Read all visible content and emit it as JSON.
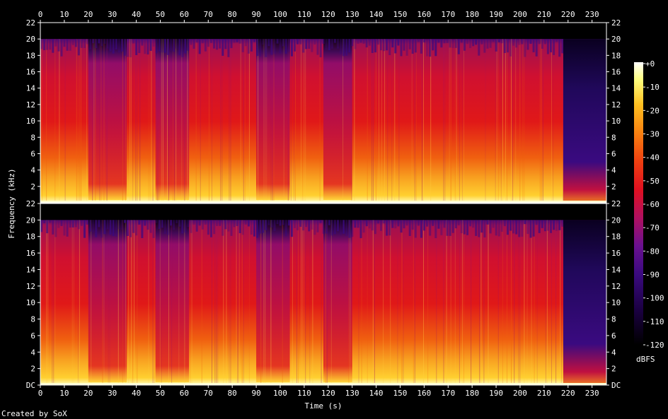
{
  "chart_data": {
    "type": "heatmap",
    "title": "",
    "xlabel": "Time (s)",
    "ylabel": "Frequency (kHz)",
    "x_ticks": [
      0,
      10,
      20,
      30,
      40,
      50,
      60,
      70,
      80,
      90,
      100,
      110,
      120,
      130,
      140,
      150,
      160,
      170,
      180,
      190,
      200,
      210,
      220,
      230
    ],
    "y_ticks": [
      "DC",
      "2",
      "4",
      "6",
      "8",
      "10",
      "12",
      "14",
      "16",
      "18",
      "20",
      "22"
    ],
    "xlim": [
      0,
      236
    ],
    "ylim_khz": [
      0,
      22
    ],
    "channels": 2,
    "colorbar": {
      "label": "dBFS",
      "ticks": [
        "+0",
        "-10",
        "-20",
        "-30",
        "-40",
        "-50",
        "-60",
        "-70",
        "-80",
        "-90",
        "-100",
        "-110",
        "-120"
      ],
      "range": [
        -120,
        0
      ]
    },
    "quiet_sections_s": [
      [
        20,
        36
      ],
      [
        48,
        62
      ],
      [
        90,
        104
      ],
      [
        118,
        130
      ]
    ],
    "cutoff_khz": 20,
    "fade_start_s": 218,
    "palette": [
      "#000000",
      "#1a0040",
      "#3a0a80",
      "#6a1090",
      "#b01060",
      "#e01020",
      "#f04010",
      "#f88010",
      "#ffc020",
      "#ffff80",
      "#ffffff"
    ]
  },
  "footer": {
    "credit": "Created by SoX"
  }
}
